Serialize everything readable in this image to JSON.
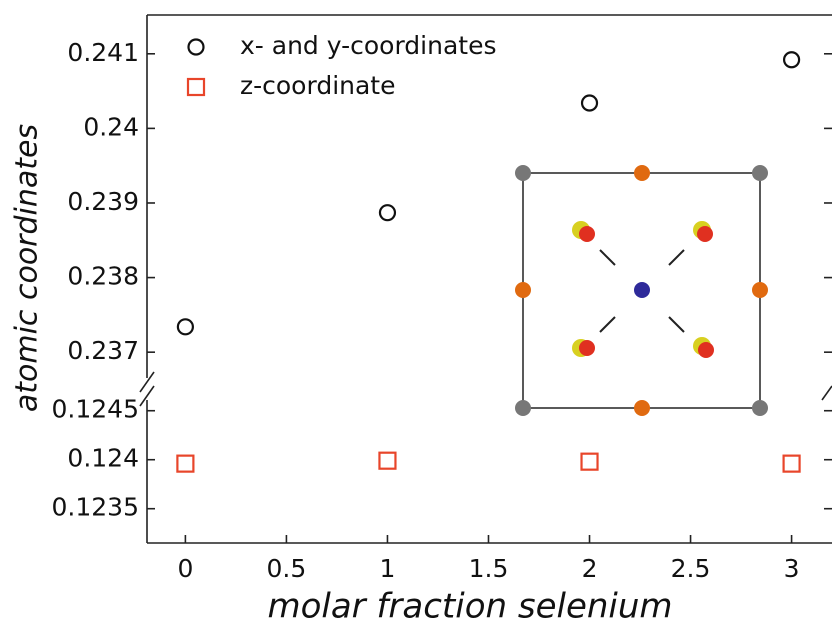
{
  "chart_data": {
    "type": "scatter",
    "xlabel": "molar fraction selenium",
    "ylabel": "atomic coordinates",
    "x": [
      0,
      1,
      2,
      3
    ],
    "xlim": [
      -0.19,
      3.2
    ],
    "xticks": [
      0,
      0.5,
      1,
      1.5,
      2,
      2.5,
      3
    ],
    "ylim": [
      0.23656,
      0.24152
    ],
    "yticks": [
      0.237,
      0.238,
      0.239,
      0.24,
      0.241
    ],
    "y2lim": [
      0.12315,
      0.12464
    ],
    "y2ticks": [
      0.1235,
      0.124,
      0.1245
    ],
    "legend": "upper left",
    "series": [
      {
        "name": "x- and y-coordinates",
        "color": "#111111",
        "marker": "circle",
        "values": [
          0.23734,
          0.23887,
          0.24034,
          0.24092
        ]
      },
      {
        "name": "z-coordinate",
        "color": "#e8452a",
        "marker": "square",
        "axis": "y2",
        "values": [
          0.12396,
          0.12399,
          0.12398,
          0.12396
        ]
      }
    ]
  }
}
